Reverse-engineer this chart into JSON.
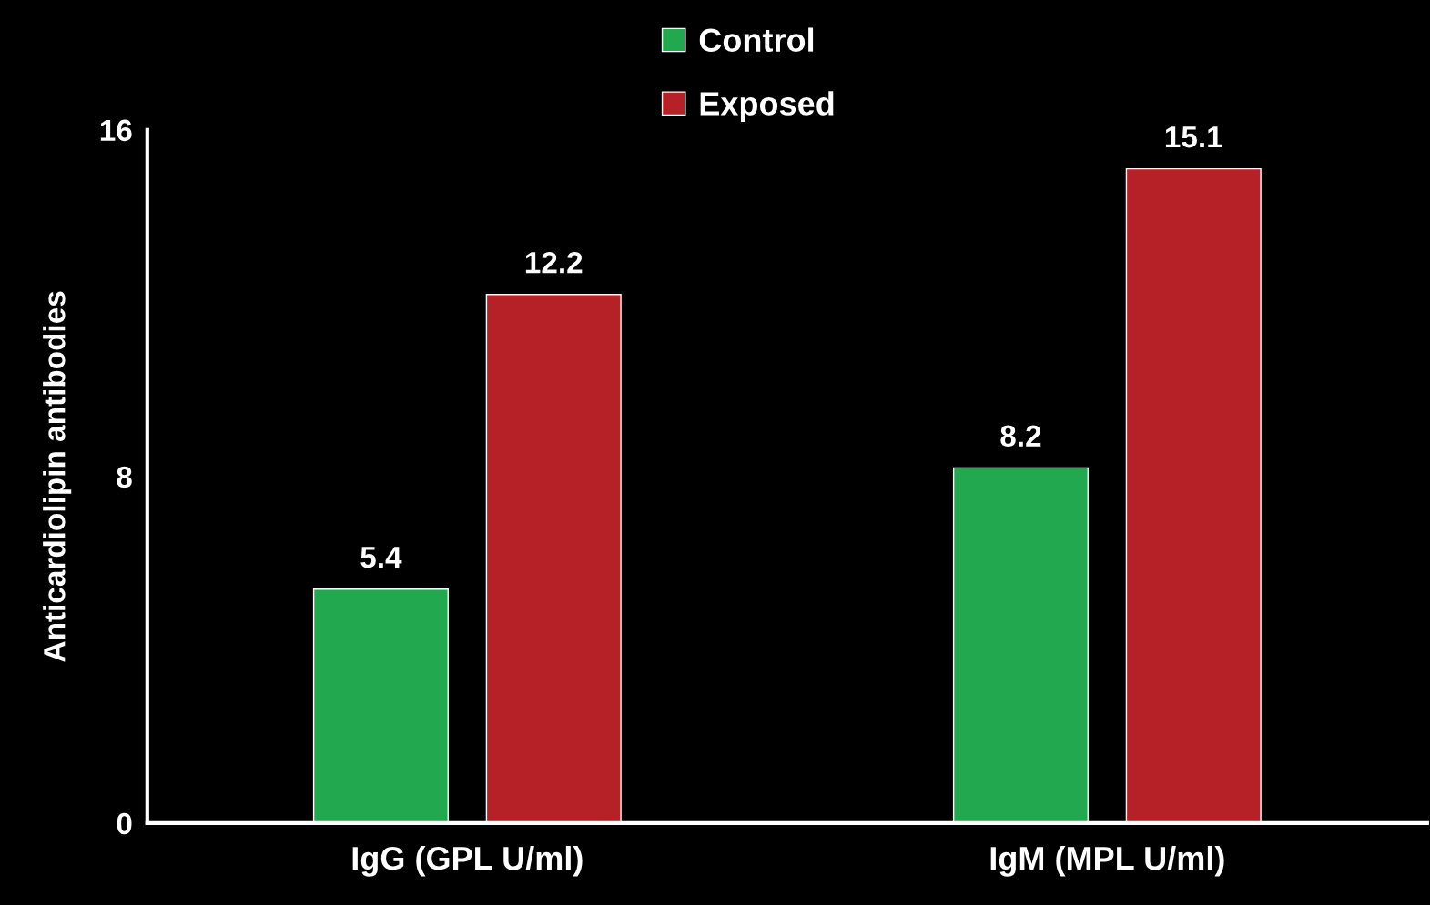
{
  "chart_data": {
    "type": "bar",
    "ylabel": "Anticardiolipin antibodies",
    "categories": [
      "IgG (GPL U/ml)",
      "IgM (MPL U/ml)"
    ],
    "series": [
      {
        "name": "Control",
        "color": "#22a84f",
        "values": [
          5.4,
          8.2
        ]
      },
      {
        "name": "Exposed",
        "color": "#b52126",
        "values": [
          12.2,
          15.1
        ]
      }
    ],
    "ylim": [
      0,
      16
    ],
    "yticks": [
      0,
      8,
      16
    ],
    "data_labels": true,
    "grid": false,
    "legend": "top"
  }
}
